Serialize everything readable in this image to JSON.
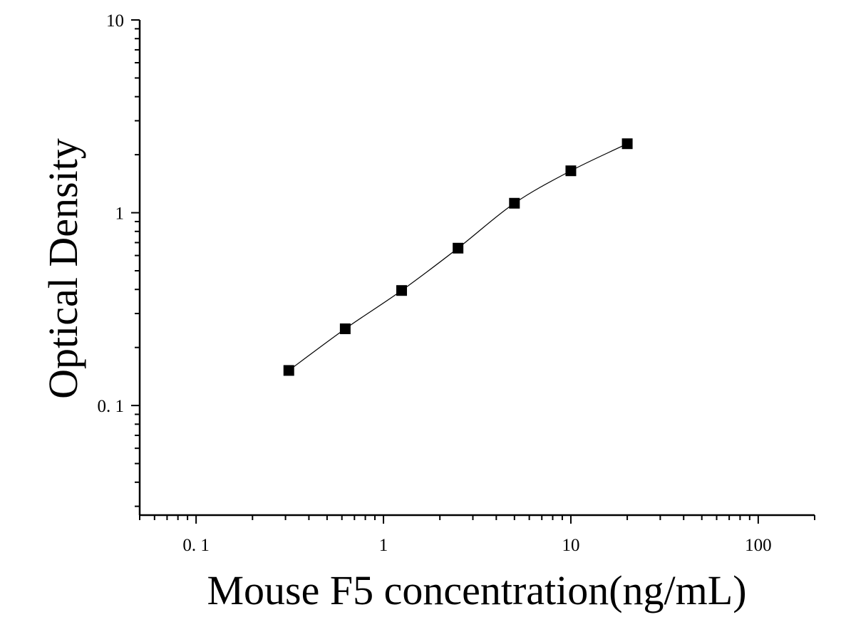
{
  "chart_data": {
    "type": "scatter",
    "xlabel": "Mouse F5 concentration(ng/mL)",
    "ylabel": "Optical Density",
    "x_scale": "log",
    "y_scale": "log",
    "xlim": [
      0.05,
      200
    ],
    "ylim": [
      0.027,
      10
    ],
    "x_tick_labels": [
      "0. 1",
      "1",
      "10",
      "100"
    ],
    "x_tick_values": [
      0.1,
      1,
      10,
      100
    ],
    "y_tick_labels": [
      "0. 1",
      "1",
      "10"
    ],
    "y_tick_values": [
      0.1,
      1,
      10
    ],
    "grid": false,
    "marker": "square",
    "color": "#000000",
    "series": [
      {
        "x": [
          0.3125,
          0.625,
          1.25,
          2.5,
          5,
          10,
          20
        ],
        "y": [
          0.152,
          0.25,
          0.395,
          0.655,
          1.12,
          1.65,
          2.28
        ],
        "fit_curve": true
      }
    ]
  }
}
